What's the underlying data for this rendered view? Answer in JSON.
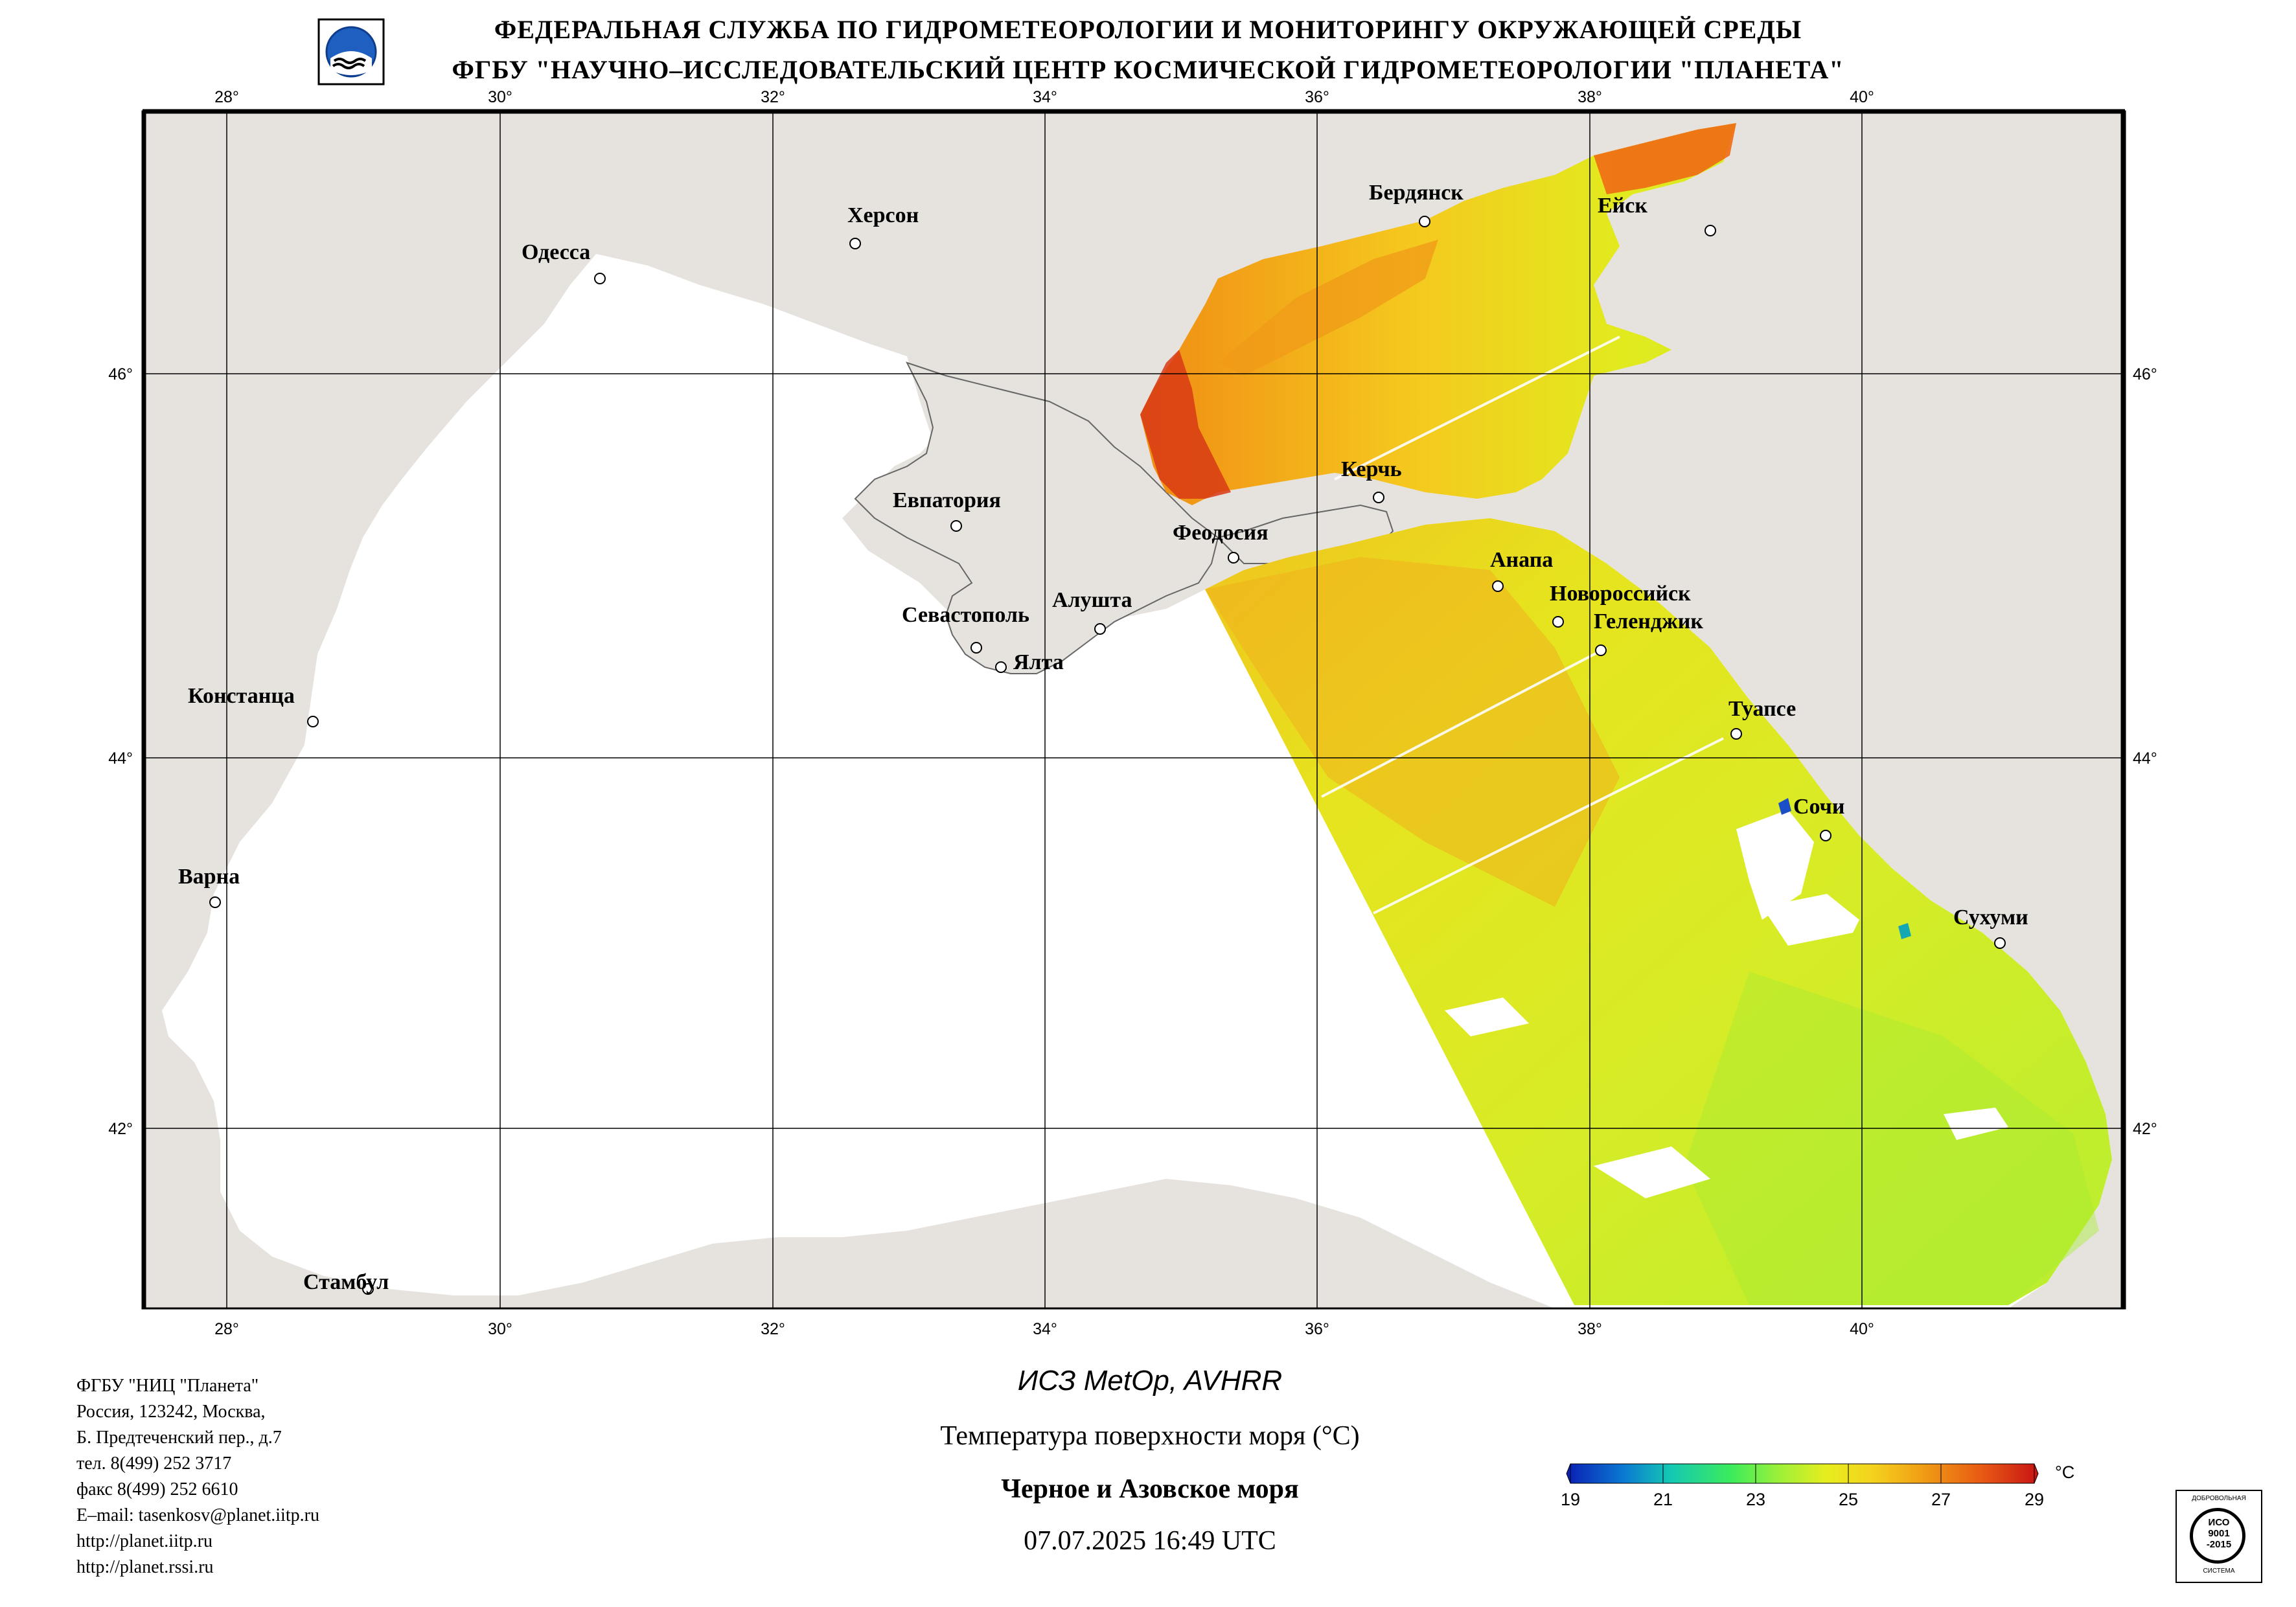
{
  "header": {
    "line1": "ФЕДЕРАЛЬНАЯ СЛУЖБА ПО ГИДРОМЕТЕОРОЛОГИИ И МОНИТОРИНГУ ОКРУЖАЮЩЕЙ СРЕДЫ",
    "line2": "ФГБУ \"НАУЧНО–ИССЛЕДОВАТЕЛЬСКИЙ ЦЕНТР КОСМИЧЕСКОЙ ГИДРОМЕТЕОРОЛОГИИ \"ПЛАНЕТА\""
  },
  "map": {
    "lon_ticks": [
      "28°",
      "30°",
      "32°",
      "34°",
      "36°",
      "38°",
      "40°"
    ],
    "lat_ticks": [
      "46°",
      "44°",
      "42°"
    ],
    "cities": [
      {
        "name": "Херсон"
      },
      {
        "name": "Одесса"
      },
      {
        "name": "Бердянск"
      },
      {
        "name": "Ейск"
      },
      {
        "name": "Керчь"
      },
      {
        "name": "Евпатория"
      },
      {
        "name": "Феодосия"
      },
      {
        "name": "Анапа"
      },
      {
        "name": "Новороссийск"
      },
      {
        "name": "Геленджик"
      },
      {
        "name": "Алушта"
      },
      {
        "name": "Севастополь"
      },
      {
        "name": "Ялта"
      },
      {
        "name": "Констанца"
      },
      {
        "name": "Туапсе"
      },
      {
        "name": "Сочи"
      },
      {
        "name": "Варна"
      },
      {
        "name": "Сухуми"
      },
      {
        "name": "Стамбул"
      }
    ]
  },
  "footer": {
    "org_lines": [
      "ФГБУ \"НИЦ \"Планета\"",
      "Россия, 123242, Москва,",
      "Б. Предтеченский пер., д.7",
      "тел. 8(499) 252 3717",
      "факс 8(499) 252 6610",
      "E–mail: tasenkosv@planet.iitp.ru",
      "http://planet.iitp.ru",
      "http://planet.rssi.ru"
    ],
    "satellite": "ИСЗ MetOp, AVHRR",
    "product": "Температура поверхности моря (°C)",
    "region": "Черное и Азовское моря",
    "datetime": "07.07.2025 16:49 UTC"
  },
  "colorbar": {
    "labels": [
      "19",
      "21",
      "23",
      "25",
      "27",
      "29"
    ],
    "unit": "°C",
    "colors": [
      "#0a1fb4",
      "#14c8b4",
      "#7ff03a",
      "#f0e61e",
      "#f08c14",
      "#d21414"
    ]
  },
  "badge": {
    "lines": [
      "ДОБРОВОЛЬНАЯ",
      "ИСО",
      "9001",
      "-2015",
      "СИСТЕМА"
    ]
  }
}
